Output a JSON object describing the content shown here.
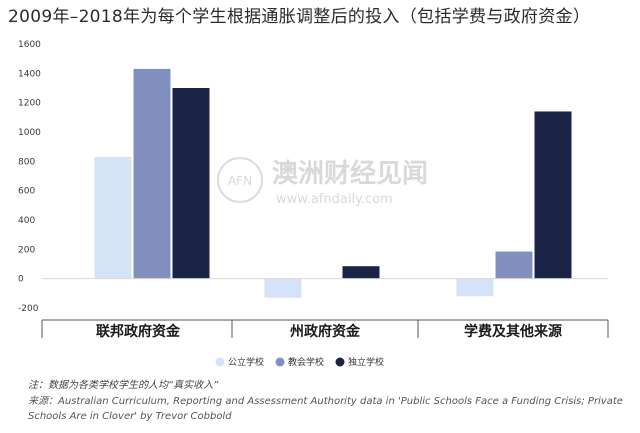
{
  "chart_data": {
    "type": "bar",
    "title": "2009年–2018年为每个学生根据通胀调整后的投入（包括学费与政府资金）",
    "categories": [
      "联邦政府资金",
      "州政府资金",
      "学费及其他来源"
    ],
    "series": [
      {
        "name": "公立学校",
        "color": "#d5e3f8",
        "values": [
          830,
          -130,
          -120
        ]
      },
      {
        "name": "教会学校",
        "color": "#8190be",
        "values": [
          1430,
          0,
          185
        ]
      },
      {
        "name": "独立学校",
        "color": "#1b2347",
        "values": [
          1300,
          85,
          1140
        ]
      }
    ],
    "yticks": [
      1600,
      1400,
      1200,
      1000,
      800,
      600,
      400,
      200,
      0,
      -200
    ],
    "ylim": [
      -200,
      1600
    ],
    "xlabel": "",
    "ylabel": "",
    "legend": "bottom-center",
    "grid": false
  },
  "watermark": {
    "logo_text": "AFN",
    "name": "澳洲财经见闻",
    "url": "www.afndaily.com"
  },
  "footer": {
    "note": "注：数据为各类学校学生的人均“真实收入”",
    "source": "来源：Australian Curriculum, Reporting and Assessment Authority data in 'Public Schools Face a Funding Crisis; Private Schools Are in Clover' by Trevor Cobbold"
  }
}
